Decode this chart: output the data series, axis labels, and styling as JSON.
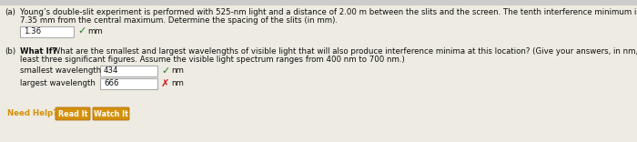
{
  "bg_color": "#eeebe2",
  "text_color": "#111111",
  "part_a_label": "(a)",
  "part_a_line1": "Young’s double-slit experiment is performed with 525-nm light and a distance of 2.00 m between the slits and the screen. The tenth interference minimum is observed",
  "part_a_line2": "7.35 mm from the central maximum. Determine the spacing of the slits (in mm).",
  "part_a_answer": "1.36",
  "part_a_unit": "mm",
  "part_b_label": "(b)",
  "part_b_bold": "What If?",
  "part_b_line1": " What are the smallest and largest wavelengths of visible light that will also produce interference minima at this location? (Give your answers, in nm, to at",
  "part_b_line2": "least three significant figures. Assume the visible light spectrum ranges from 400 nm to 700 nm.)",
  "smallest_label": "smallest wavelength",
  "smallest_value": "434",
  "smallest_unit": "nm",
  "smallest_correct": true,
  "largest_label": "largest wavelength",
  "largest_value": "666",
  "largest_unit": "nm",
  "largest_correct": false,
  "need_help_color": "#d4900a",
  "need_help_text": "Need Help?",
  "btn1_text": "Read It",
  "btn2_text": "Watch It",
  "check_color": "#2a7a2a",
  "x_color": "#cc1111",
  "box_facecolor": "#ffffff",
  "box_edgecolor": "#aaaaaa",
  "top_bar_color": "#c8c8c8"
}
